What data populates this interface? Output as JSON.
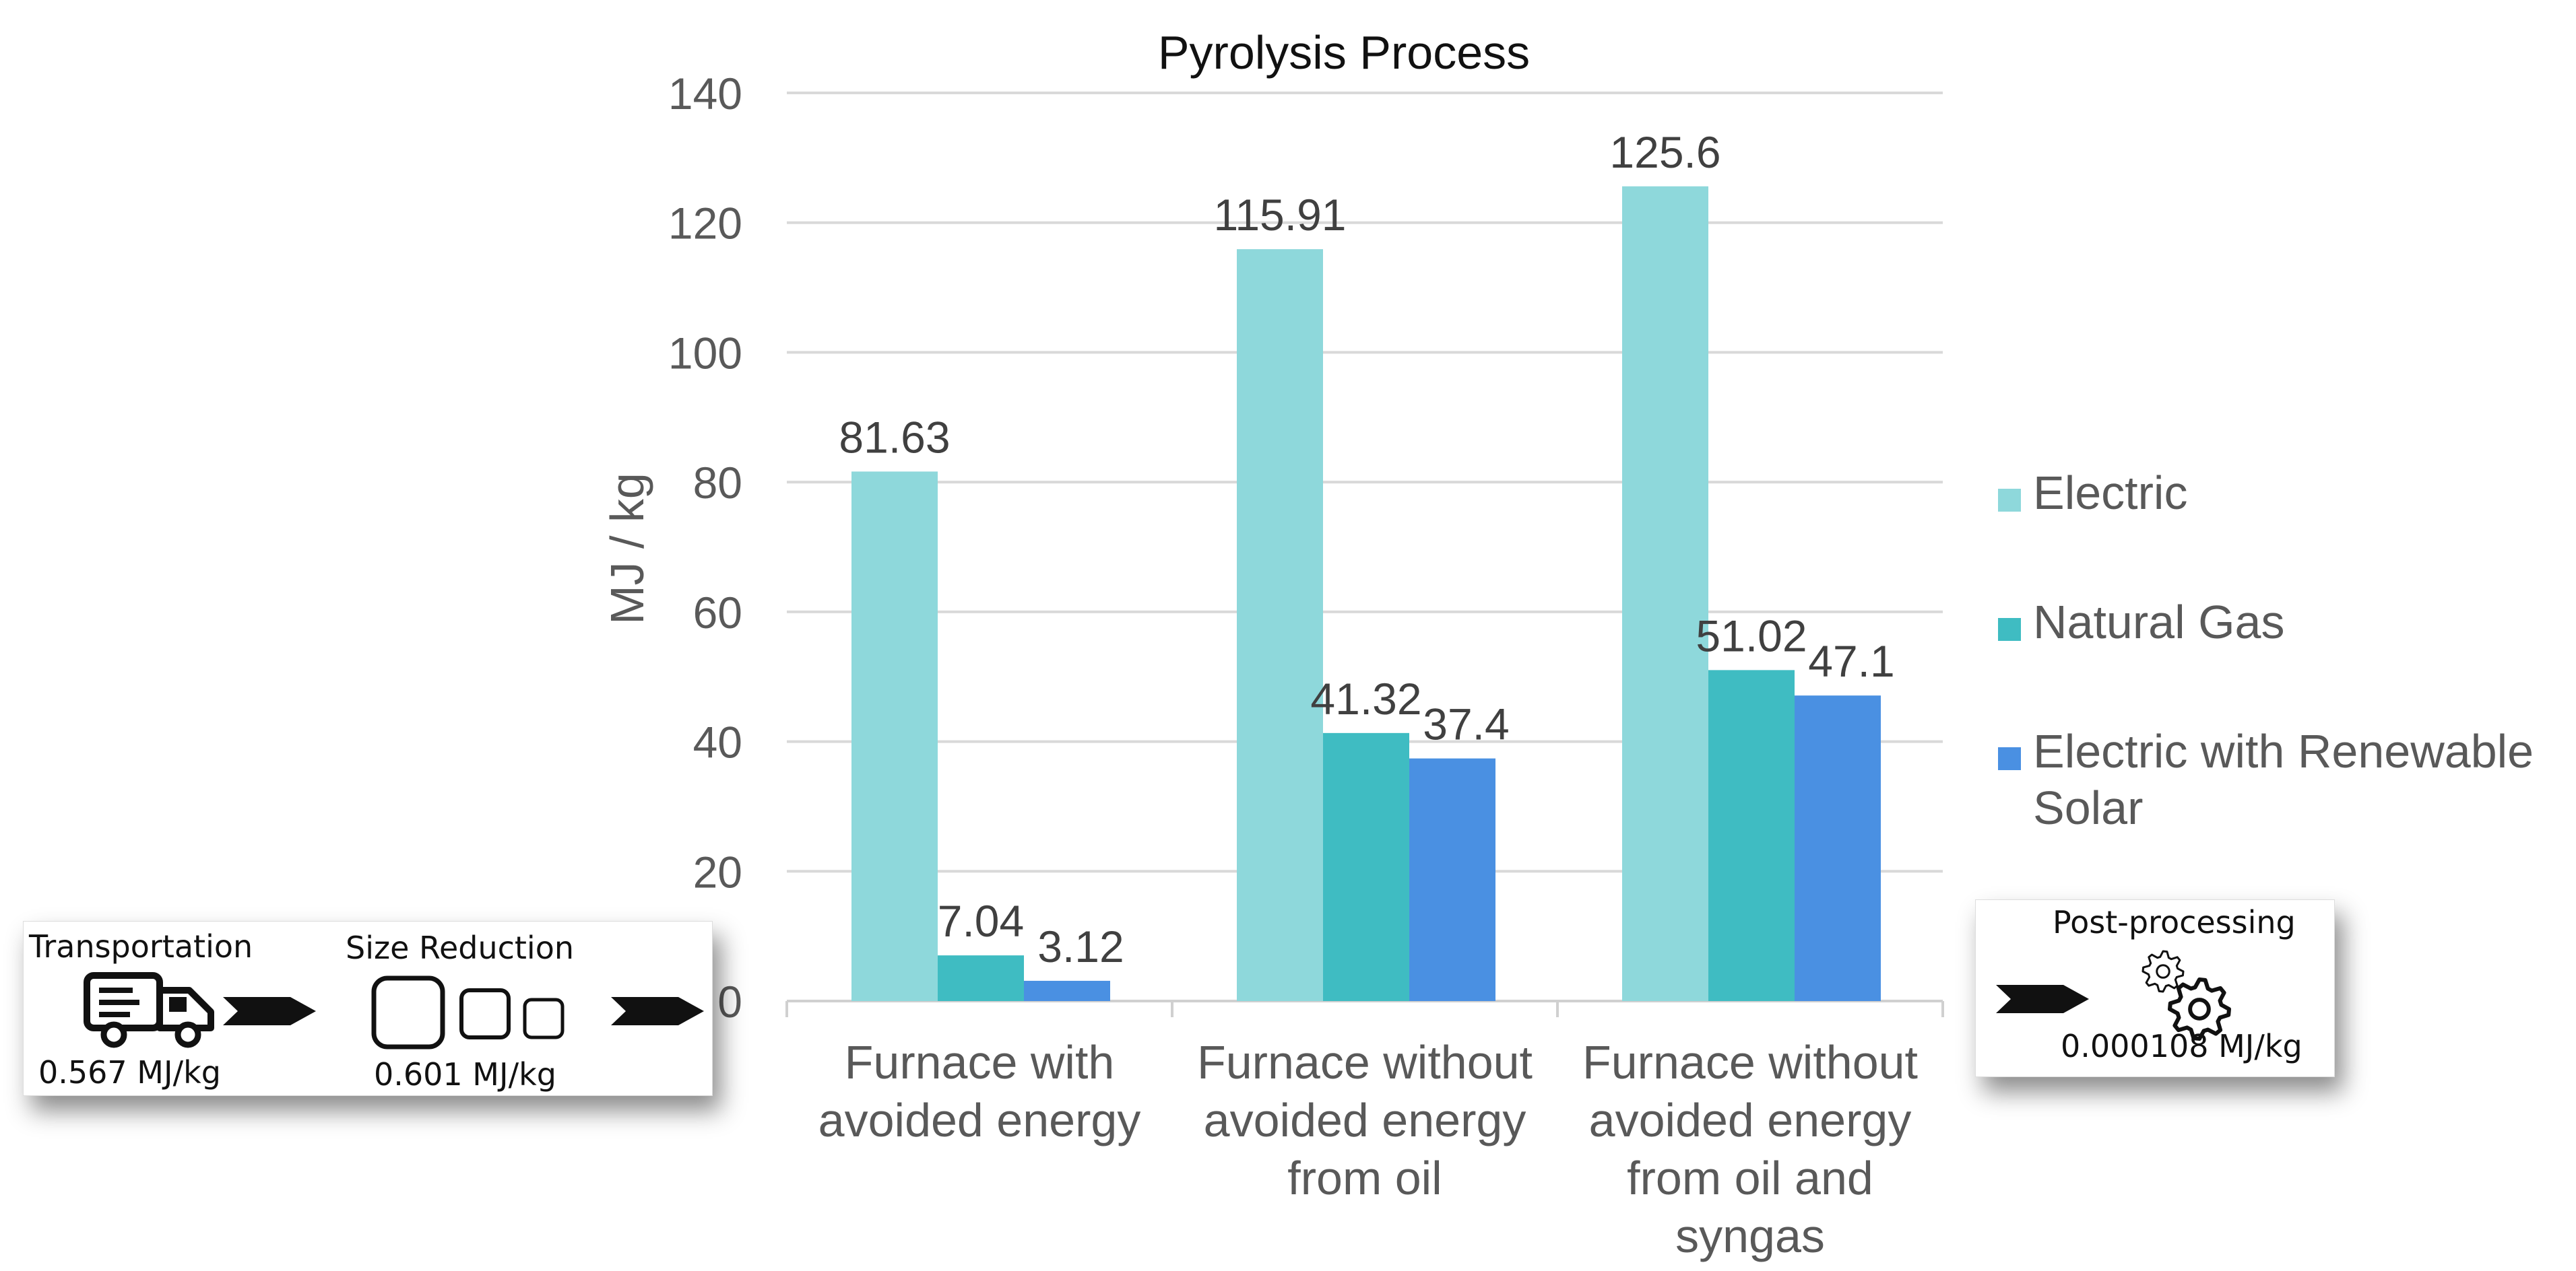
{
  "chart_data": {
    "type": "bar",
    "title": "Pyrolysis Process",
    "xlabel": "",
    "ylabel": "MJ / kg",
    "ylim": [
      0,
      140
    ],
    "yticks": [
      "0",
      "20",
      "40",
      "60",
      "80",
      "100",
      "120",
      "140"
    ],
    "gridlines": true,
    "legend_position": "right",
    "categories": [
      [
        "Furnace with",
        "avoided energy"
      ],
      [
        "Furnace without",
        "avoided energy",
        "from oil"
      ],
      [
        "Furnace without",
        "avoided energy",
        "from oil and",
        "syngas"
      ]
    ],
    "series": [
      {
        "name": "Electric",
        "legend_lines": [
          "Electric"
        ],
        "color": "#8ed8db",
        "values": [
          81.63,
          115.91,
          125.6
        ],
        "labels": [
          "81.63",
          "115.91",
          "125.6"
        ]
      },
      {
        "name": "Natural Gas",
        "legend_lines": [
          "Natural Gas"
        ],
        "color": "#3fbcc2",
        "values": [
          7.04,
          41.32,
          51.02
        ],
        "labels": [
          "7.04",
          "41.32",
          "51.02"
        ]
      },
      {
        "name": "Electric with Renewable Solar",
        "legend_lines": [
          "Electric with Renewable",
          "Solar"
        ],
        "color": "#4a90e2",
        "values": [
          3.12,
          37.4,
          47.1
        ],
        "labels": [
          "3.12",
          "37.4",
          "47.1"
        ]
      }
    ]
  },
  "process": {
    "transportation": {
      "label": "Transportation",
      "value": "0.567 MJ/kg",
      "icon": "truck-icon"
    },
    "size_reduction": {
      "label": "Size Reduction",
      "value": "0.601 MJ/kg",
      "icon": "squares-icon"
    },
    "post_processing": {
      "label": "Post-processing",
      "value": "0.000108 MJ/kg",
      "icon": "gears-icon"
    }
  }
}
